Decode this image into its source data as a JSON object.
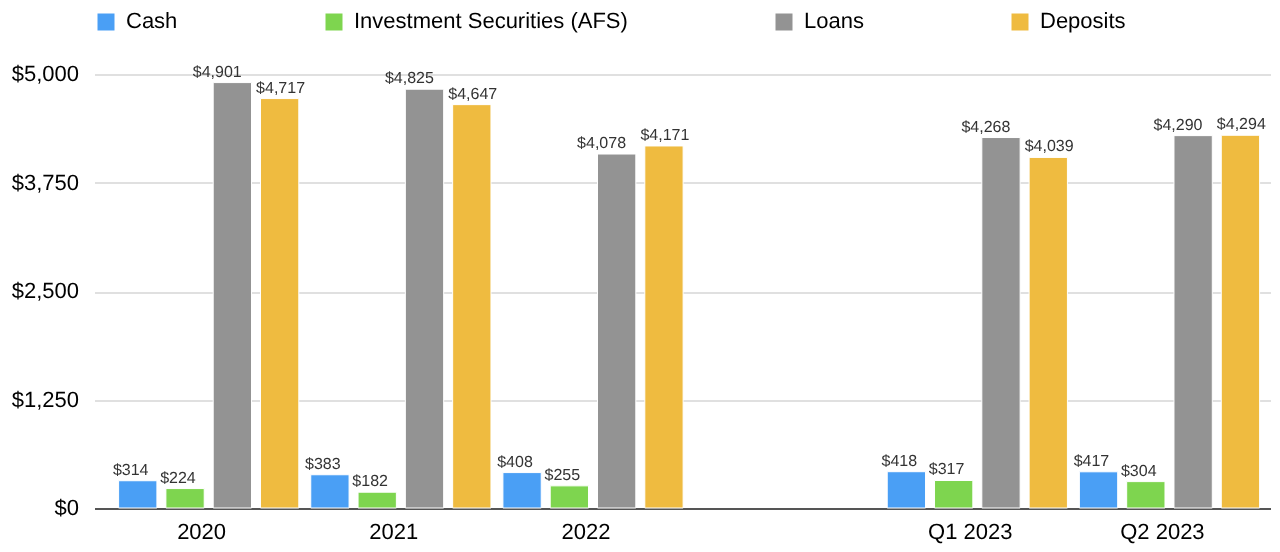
{
  "chart_data": {
    "type": "bar",
    "categories": [
      "2020",
      "2021",
      "2022",
      null,
      "Q1 2023",
      "Q2 2023"
    ],
    "series": [
      {
        "name": "Cash",
        "color": "#4a9ff5",
        "values": [
          314,
          383,
          408,
          null,
          418,
          417
        ],
        "value_labels": [
          "$314",
          "$383",
          "$408",
          null,
          "$418",
          "$417"
        ]
      },
      {
        "name": "Investment Securities (AFS)",
        "color": "#7ed54f",
        "values": [
          224,
          182,
          255,
          null,
          317,
          304
        ],
        "value_labels": [
          "$224",
          "$182",
          "$255",
          null,
          "$317",
          "$304"
        ]
      },
      {
        "name": "Loans",
        "color": "#939393",
        "values": [
          4901,
          4825,
          4078,
          null,
          4268,
          4290
        ],
        "value_labels": [
          "$4,901",
          "$4,825",
          "$4,078",
          null,
          "$4,268",
          "$4,290"
        ]
      },
      {
        "name": "Deposits",
        "color": "#efbb40",
        "values": [
          4717,
          4647,
          4171,
          null,
          4039,
          4294
        ],
        "value_labels": [
          "$4,717",
          "$4,647",
          "$4,171",
          null,
          "$4,039",
          "$4,294"
        ]
      }
    ],
    "ylim": [
      0,
      5000
    ],
    "yticks": [
      {
        "value": 0,
        "label": "$0"
      },
      {
        "value": 1250,
        "label": "$1,250"
      },
      {
        "value": 2500,
        "label": "$2,500"
      },
      {
        "value": 3750,
        "label": "$3,750"
      },
      {
        "value": 5000,
        "label": "$5,000"
      }
    ],
    "grid": "y",
    "legend": "top"
  }
}
